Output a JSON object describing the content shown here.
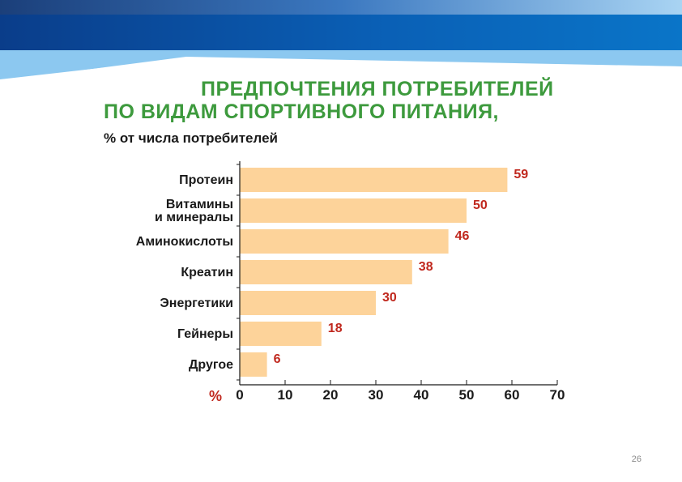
{
  "theme": {
    "header_dark": "#0a3d8a",
    "header_blue": "#0a6fc2",
    "header_light": "#8cc8f0",
    "bar_color": "#fdd39a",
    "value_color": "#c0281e",
    "title_color": "#3d9a3d"
  },
  "slide": {
    "title_line1": "ПРЕДПОЧТЕНИЯ ПОТРЕБИТЕЛЕЙ",
    "title_line2": "ПО ВИДАМ СПОРТИВНОГО ПИТАНИЯ,",
    "subtitle": "% от числа потребителей",
    "page_number": "26"
  },
  "chart_data": {
    "type": "bar",
    "orientation": "horizontal",
    "categories": [
      [
        "Протеин"
      ],
      [
        "Витамины",
        "и минералы"
      ],
      [
        "Аминокислоты"
      ],
      [
        "Креатин"
      ],
      [
        "Энергетики"
      ],
      [
        "Гейнеры"
      ],
      [
        "Другое"
      ]
    ],
    "values": [
      59,
      50,
      46,
      38,
      30,
      18,
      6
    ],
    "xlim": [
      0,
      70
    ],
    "xticks": [
      0,
      10,
      20,
      30,
      40,
      50,
      60,
      70
    ],
    "xlabel": "%",
    "grid": false,
    "legend": null
  }
}
